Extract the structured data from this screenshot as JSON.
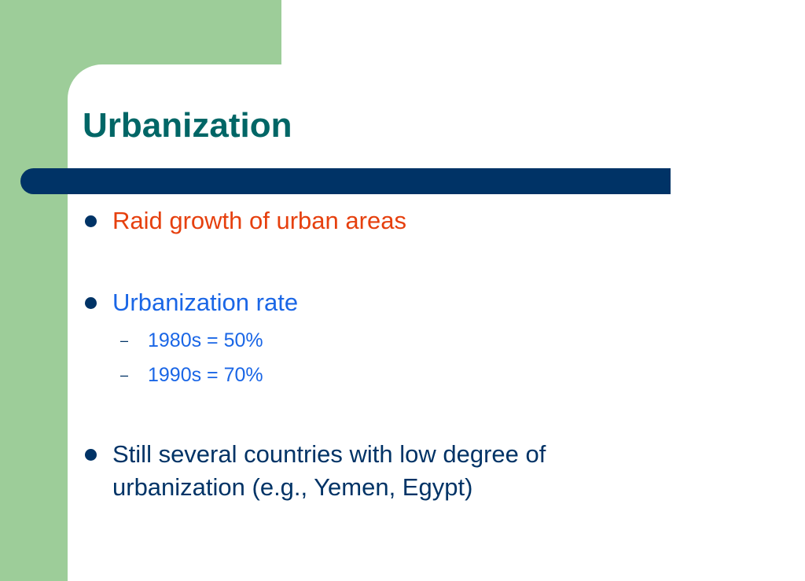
{
  "slide": {
    "title": "Urbanization",
    "bullets": [
      {
        "text": "Raid growth of urban areas",
        "color": "#e6400e"
      },
      {
        "text": "Urbanization rate",
        "color": "#1a66e6",
        "subitems": [
          {
            "dash": "–",
            "text": "1980s = 50%"
          },
          {
            "dash": "–",
            "text": "1990s = 70%"
          }
        ]
      },
      {
        "text": "Still several countries with low degree of urbanization (e.g., Yemen, Egypt)",
        "color": "#003366"
      }
    ]
  },
  "theme": {
    "accent_green": "#9dcd99",
    "title_color": "#006666",
    "bar_color": "#003366"
  }
}
